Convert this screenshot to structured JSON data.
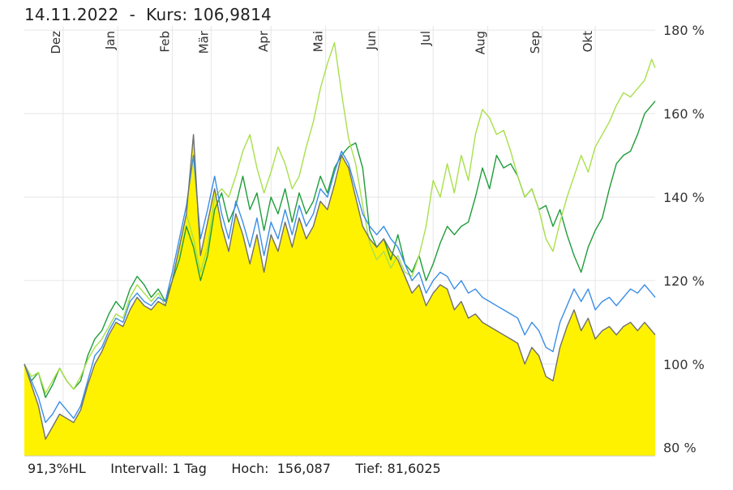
{
  "header": {
    "date": "14.11.2022",
    "separator": "  -  ",
    "price_label": "Kurs:",
    "price_value": "106,9814"
  },
  "footer": {
    "range": "91,3%HL",
    "interval_label": "Intervall:",
    "interval_value": "1 Tag",
    "high_label": "Hoch:",
    "high_value": "156,087",
    "low_label": "Tief:",
    "low_value": "81,6025"
  },
  "chart_data": {
    "type": "area",
    "x_ticks": [
      "Dez",
      "Jan",
      "Feb",
      "Mär",
      "Apr",
      "Mai",
      "Jun",
      "Jul",
      "Aug",
      "Sep",
      "Okt"
    ],
    "y_ticks": [
      "80 %",
      "100 %",
      "120 %",
      "140 %",
      "160 %",
      "180 %"
    ],
    "ylim": [
      78,
      181
    ],
    "x_range_days": [
      0,
      358
    ],
    "x_tick_days": [
      22,
      53,
      84,
      106,
      140,
      171,
      201,
      232,
      263,
      294,
      324
    ],
    "grid": true,
    "series": [
      {
        "color": "#1f9c3a",
        "x": [
          0,
          4,
          8,
          12,
          16,
          20,
          24,
          28,
          32,
          36,
          40,
          44,
          48,
          52,
          56,
          60,
          64,
          68,
          72,
          76,
          80,
          84,
          88,
          92,
          96,
          100,
          104,
          108,
          112,
          116,
          120,
          124,
          128,
          132,
          136,
          140,
          144,
          148,
          152,
          156,
          160,
          164,
          168,
          172,
          176,
          180,
          184,
          188,
          192,
          196,
          200,
          204,
          208,
          212,
          216,
          220,
          224,
          228,
          232,
          236,
          240,
          244,
          248,
          252,
          256,
          260,
          264,
          268,
          272,
          276,
          280,
          284,
          288,
          292,
          296,
          300,
          304,
          308,
          312,
          316,
          320,
          324,
          328,
          332,
          336,
          340,
          344,
          348,
          352,
          356,
          358
        ],
        "values": [
          100,
          96,
          98,
          92,
          95,
          99,
          96,
          94,
          96,
          102,
          106,
          108,
          112,
          115,
          113,
          118,
          121,
          119,
          116,
          118,
          115,
          120,
          125,
          133,
          128,
          120,
          126,
          137,
          141,
          134,
          138,
          145,
          137,
          141,
          132,
          140,
          136,
          142,
          134,
          141,
          136,
          139,
          145,
          141,
          147,
          150,
          152,
          153,
          147,
          132,
          128,
          130,
          125,
          131,
          124,
          122,
          126,
          120,
          124,
          129,
          133,
          131,
          133,
          134,
          140,
          147,
          142,
          150,
          147,
          148,
          145,
          140,
          142,
          137,
          138,
          133,
          137,
          131,
          126,
          122,
          128,
          132,
          135,
          142,
          148,
          150,
          151,
          155,
          160,
          162,
          163
        ]
      },
      {
        "color": "#a8e04a",
        "x": [
          0,
          4,
          8,
          12,
          16,
          20,
          24,
          28,
          32,
          36,
          40,
          44,
          48,
          52,
          56,
          60,
          64,
          68,
          72,
          76,
          80,
          84,
          88,
          92,
          96,
          100,
          104,
          108,
          112,
          116,
          120,
          124,
          128,
          132,
          136,
          140,
          144,
          148,
          152,
          156,
          160,
          164,
          168,
          172,
          176,
          180,
          184,
          188,
          192,
          196,
          200,
          204,
          208,
          212,
          216,
          220,
          224,
          228,
          232,
          236,
          240,
          244,
          248,
          252,
          256,
          260,
          264,
          268,
          272,
          276,
          280,
          284,
          288,
          292,
          296,
          300,
          304,
          308,
          312,
          316,
          320,
          324,
          328,
          332,
          336,
          340,
          344,
          348,
          352,
          356,
          358
        ],
        "values": [
          100,
          97,
          98,
          93,
          96,
          99,
          96,
          94,
          97,
          101,
          104,
          106,
          109,
          112,
          111,
          116,
          119,
          117,
          115,
          117,
          114,
          120,
          128,
          136,
          130,
          122,
          128,
          140,
          142,
          140,
          145,
          151,
          155,
          147,
          141,
          146,
          152,
          148,
          142,
          145,
          152,
          158,
          166,
          172,
          177,
          165,
          154,
          148,
          138,
          129,
          125,
          127,
          123,
          126,
          122,
          121,
          126,
          133,
          144,
          140,
          148,
          141,
          150,
          144,
          155,
          161,
          159,
          155,
          156,
          151,
          145,
          140,
          142,
          137,
          130,
          127,
          134,
          140,
          145,
          150,
          146,
          152,
          155,
          158,
          162,
          165,
          164,
          166,
          168,
          173,
          171
        ]
      },
      {
        "color": "#3a8ee6",
        "x": [
          0,
          4,
          8,
          12,
          16,
          20,
          24,
          28,
          32,
          36,
          40,
          44,
          48,
          52,
          56,
          60,
          64,
          68,
          72,
          76,
          80,
          84,
          88,
          92,
          96,
          100,
          104,
          108,
          112,
          116,
          120,
          124,
          128,
          132,
          136,
          140,
          144,
          148,
          152,
          156,
          160,
          164,
          168,
          172,
          176,
          180,
          184,
          188,
          192,
          196,
          200,
          204,
          208,
          212,
          216,
          220,
          224,
          228,
          232,
          236,
          240,
          244,
          248,
          252,
          256,
          260,
          264,
          268,
          272,
          276,
          280,
          284,
          288,
          292,
          296,
          300,
          304,
          308,
          312,
          316,
          320,
          324,
          328,
          332,
          336,
          340,
          344,
          348,
          352,
          356,
          358
        ],
        "values": [
          100,
          96,
          92,
          86,
          88,
          91,
          89,
          87,
          90,
          96,
          102,
          104,
          108,
          111,
          110,
          115,
          117,
          115,
          114,
          116,
          115,
          122,
          130,
          138,
          150,
          130,
          137,
          145,
          136,
          130,
          139,
          134,
          128,
          135,
          126,
          134,
          130,
          137,
          131,
          138,
          133,
          136,
          142,
          140,
          146,
          151,
          148,
          142,
          136,
          133,
          131,
          133,
          130,
          128,
          124,
          120,
          122,
          117,
          120,
          122,
          121,
          118,
          120,
          117,
          118,
          116,
          115,
          114,
          113,
          112,
          111,
          107,
          110,
          108,
          104,
          103,
          110,
          114,
          118,
          115,
          118,
          113,
          115,
          116,
          114,
          116,
          118,
          117,
          119,
          117,
          116
        ]
      },
      {
        "color": "#707070",
        "fill": "#fff200",
        "x": [
          0,
          4,
          8,
          12,
          16,
          20,
          24,
          28,
          32,
          36,
          40,
          44,
          48,
          52,
          56,
          60,
          64,
          68,
          72,
          76,
          80,
          84,
          88,
          92,
          96,
          100,
          104,
          108,
          112,
          116,
          120,
          124,
          128,
          132,
          136,
          140,
          144,
          148,
          152,
          156,
          160,
          164,
          168,
          172,
          176,
          180,
          184,
          188,
          192,
          196,
          200,
          204,
          208,
          212,
          216,
          220,
          224,
          228,
          232,
          236,
          240,
          244,
          248,
          252,
          256,
          260,
          264,
          268,
          272,
          276,
          280,
          284,
          288,
          292,
          296,
          300,
          304,
          308,
          312,
          316,
          320,
          324,
          328,
          332,
          336,
          340,
          344,
          348,
          352,
          356,
          358
        ],
        "values": [
          100,
          95,
          90,
          82,
          85,
          88,
          87,
          86,
          89,
          95,
          100,
          103,
          107,
          110,
          109,
          113,
          116,
          114,
          113,
          115,
          114,
          120,
          128,
          136,
          155,
          126,
          134,
          142,
          133,
          127,
          136,
          131,
          124,
          131,
          122,
          131,
          127,
          134,
          128,
          135,
          130,
          133,
          139,
          137,
          143,
          150,
          147,
          140,
          133,
          130,
          128,
          130,
          127,
          125,
          121,
          117,
          119,
          114,
          117,
          119,
          118,
          113,
          115,
          111,
          112,
          110,
          109,
          108,
          107,
          106,
          105,
          100,
          104,
          102,
          97,
          96,
          104,
          109,
          113,
          108,
          111,
          106,
          108,
          109,
          107,
          109,
          110,
          108,
          110,
          108,
          107
        ]
      }
    ]
  },
  "colors": {
    "area_fill": "#fff200",
    "grid": "#e6e6e6",
    "background": "#ffffff"
  }
}
